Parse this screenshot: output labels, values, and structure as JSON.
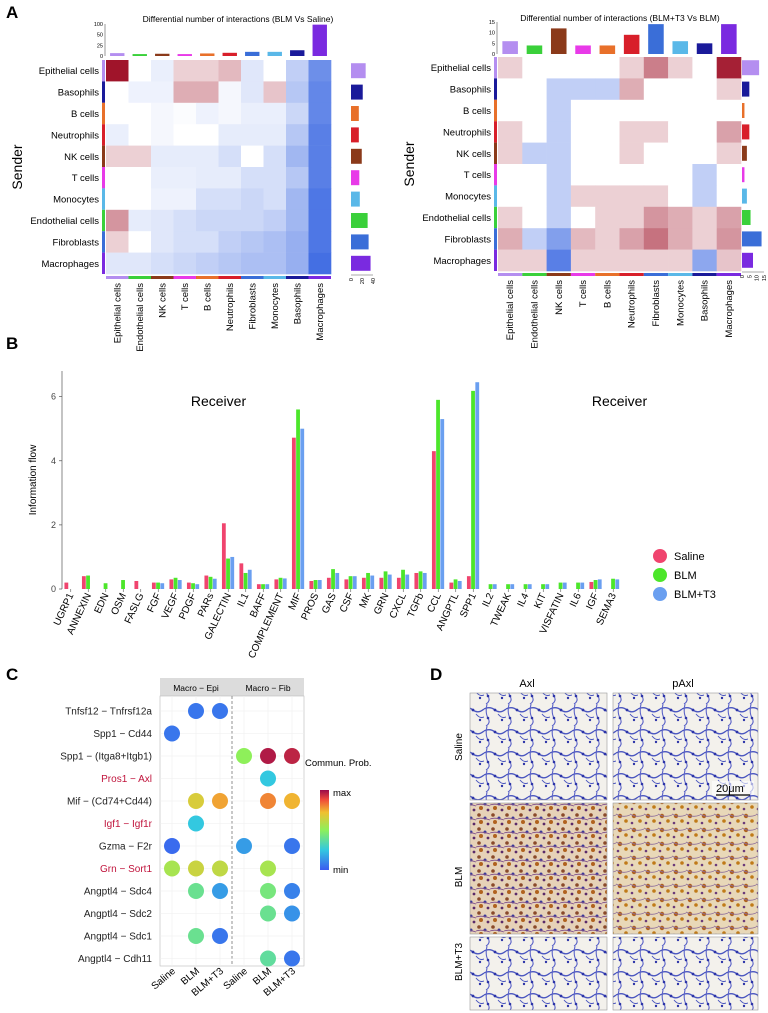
{
  "panels": {
    "a": "A",
    "b": "B",
    "c": "C",
    "d": "D"
  },
  "colors": {
    "cell_types": {
      "Epithelial cells": "#b48ef0",
      "Basophils": "#1a1a9a",
      "B cells": "#e8702a",
      "Neutrophils": "#d81f2a",
      "NK cells": "#8b3a1a",
      "T cells": "#e83ae8",
      "Monocytes": "#5ab8e8",
      "Endothelial cells": "#3ad03a",
      "Fibroblasts": "#3a6ed8",
      "Macrophages": "#7a2ae0"
    },
    "saline": "#f0446e",
    "blm": "#4ce62a",
    "blm_t3": "#6a9ff0",
    "heat_pos": "#a0142a",
    "heat_neg": "#2f5fe0"
  },
  "heatmaps": [
    {
      "id": "blm_vs_saline",
      "title": "Differential number of interactions (BLM  Vs  Saline)",
      "ylabel": "Sender",
      "xlabel": "Receiver",
      "rows": [
        "Epithelial cells",
        "Basophils",
        "B cells",
        "Neutrophils",
        "NK cells",
        "T cells",
        "Monocytes",
        "Endothelial cells",
        "Fibroblasts",
        "Macrophages"
      ],
      "cols": [
        "Epithelial cells",
        "Endothelial cells",
        "NK cells",
        "T cells",
        "B cells",
        "Neutrophils",
        "Fibroblasts",
        "Monocytes",
        "Basophils",
        "Macrophages"
      ],
      "top_axis_ticks": [
        "100",
        "50",
        "25",
        "0"
      ],
      "top_axis_max": 100,
      "right_axis_ticks": [
        "0",
        "20",
        "40"
      ],
      "right_axis_max": 45,
      "top_bars": [
        9,
        6,
        7,
        6,
        8,
        10,
        13,
        13,
        18,
        98
      ],
      "right_bars": [
        30,
        24,
        16,
        16,
        22,
        17,
        18,
        34,
        36,
        40
      ],
      "matrix": [
        [
          1,
          0,
          -0.1,
          0.2,
          0.2,
          0.3,
          -0.15,
          0,
          -0.3,
          -0.7
        ],
        [
          0,
          -0.08,
          -0.08,
          0.35,
          0.35,
          -0.05,
          -0.15,
          0.25,
          -0.35,
          -0.75
        ],
        [
          0,
          0,
          -0.05,
          -0.02,
          -0.08,
          -0.05,
          -0.1,
          -0.1,
          -0.25,
          -0.75
        ],
        [
          -0.1,
          0,
          -0.05,
          0,
          0,
          -0.12,
          -0.12,
          -0.12,
          -0.35,
          -0.8
        ],
        [
          0.2,
          0.2,
          -0.12,
          -0.12,
          -0.12,
          -0.2,
          0,
          -0.2,
          -0.45,
          -0.8
        ],
        [
          0,
          0,
          -0.1,
          -0.1,
          -0.12,
          -0.12,
          -0.2,
          -0.2,
          -0.35,
          -0.8
        ],
        [
          0,
          0,
          -0.08,
          -0.08,
          -0.2,
          -0.2,
          -0.25,
          -0.2,
          -0.45,
          -0.85
        ],
        [
          0.45,
          -0.12,
          -0.15,
          -0.2,
          -0.25,
          -0.25,
          -0.25,
          -0.3,
          -0.45,
          -0.85
        ],
        [
          0.2,
          0,
          -0.15,
          -0.2,
          -0.2,
          -0.3,
          -0.35,
          -0.4,
          -0.5,
          -0.85
        ],
        [
          -0.15,
          -0.15,
          -0.2,
          -0.25,
          -0.3,
          -0.35,
          -0.4,
          -0.4,
          -0.5,
          -0.9
        ]
      ]
    },
    {
      "id": "blmt3_vs_blm",
      "title": "Differential number of interactions (BLM+T3  Vs  BLM)",
      "ylabel": "Sender",
      "xlabel": "Receiver",
      "rows": [
        "Epithelial cells",
        "Basophils",
        "B cells",
        "Neutrophils",
        "NK cells",
        "T cells",
        "Monocytes",
        "Endothelial cells",
        "Fibroblasts",
        "Macrophages"
      ],
      "cols": [
        "Epithelial cells",
        "Endothelial cells",
        "NK cells",
        "T cells",
        "B cells",
        "Neutrophils",
        "Fibroblasts",
        "Monocytes",
        "Basophils",
        "Macrophages"
      ],
      "top_axis_ticks": [
        "15",
        "10",
        "5",
        "0"
      ],
      "top_axis_max": 15,
      "right_axis_ticks": [
        "0",
        "5",
        "10",
        "15"
      ],
      "right_axis_max": 18,
      "top_bars": [
        6,
        4,
        12,
        4,
        4,
        9,
        14,
        6,
        5,
        14
      ],
      "right_bars": [
        14,
        6,
        2,
        6,
        4,
        2,
        4,
        7,
        16,
        9
      ],
      "matrix": [
        [
          0.2,
          0,
          0,
          0,
          0,
          0.2,
          0.55,
          0.2,
          0,
          0.95
        ],
        [
          0,
          0,
          -0.3,
          -0.3,
          -0.3,
          0.35,
          0,
          0,
          0,
          0.2
        ],
        [
          0,
          0,
          -0.3,
          0,
          0,
          0,
          0,
          0,
          0,
          0
        ],
        [
          0.2,
          0,
          -0.3,
          0,
          0,
          0.2,
          0.2,
          0,
          0,
          0.4
        ],
        [
          0.2,
          -0.3,
          -0.3,
          0,
          0,
          0.2,
          0,
          0,
          0,
          0.2
        ],
        [
          0,
          0,
          -0.3,
          0,
          0,
          0,
          0,
          0,
          -0.3,
          0
        ],
        [
          0,
          0,
          -0.3,
          0.2,
          0.2,
          0.2,
          0.2,
          0,
          -0.3,
          0
        ],
        [
          0.2,
          0,
          -0.3,
          0,
          0.2,
          0.2,
          0.45,
          0.35,
          0.2,
          0.4
        ],
        [
          0.35,
          -0.3,
          -0.6,
          0.3,
          0.2,
          0.4,
          0.6,
          0.35,
          0.2,
          0.45
        ],
        [
          0.2,
          0.2,
          -0.8,
          0.2,
          0.2,
          0.2,
          0.2,
          0.2,
          -0.55,
          0.25
        ]
      ]
    }
  ],
  "chart_data": {
    "type": "bar",
    "ylabel": "Information flow",
    "ylim": [
      0,
      6.8
    ],
    "yticks": [
      "0",
      "2",
      "4",
      "6"
    ],
    "categories": [
      "UGRP1",
      "ANNEXIN",
      "EDN",
      "OSM",
      "FASLG",
      "FGF",
      "VEGF",
      "PDGF",
      "PARs",
      "GALECTIN",
      "IL1",
      "BAFF",
      "COMPLEMENT",
      "MIF",
      "PROS",
      "GAS",
      "CSF",
      "MK",
      "GRN",
      "CXCL",
      "TGFb",
      "CCL",
      "ANGPTL",
      "SPP1",
      "IL2",
      "TWEAK",
      "IL4",
      "KIT",
      "VISFATIN",
      "IL6",
      "IGF",
      "SEMA3"
    ],
    "series": [
      {
        "name": "Saline",
        "values": [
          0.2,
          0.4,
          0,
          0,
          0.25,
          0.2,
          0.3,
          0.2,
          0.42,
          2.05,
          0.8,
          0.15,
          0.3,
          4.72,
          0.25,
          0.35,
          0.3,
          0.35,
          0.35,
          0.35,
          0.5,
          4.3,
          0.2,
          0.4,
          0,
          0,
          0,
          0,
          0,
          0,
          0.22,
          0
        ]
      },
      {
        "name": "BLM",
        "values": [
          0,
          0.42,
          0.18,
          0.28,
          0,
          0.2,
          0.35,
          0.18,
          0.38,
          0.95,
          0.5,
          0.15,
          0.35,
          5.6,
          0.28,
          0.62,
          0.4,
          0.5,
          0.55,
          0.6,
          0.55,
          5.9,
          0.3,
          6.18,
          0.15,
          0.15,
          0.15,
          0.15,
          0.2,
          0.2,
          0.28,
          0.32
        ]
      },
      {
        "name": "BLM+T3",
        "values": [
          0,
          0,
          0,
          0,
          0,
          0.18,
          0.28,
          0.15,
          0.32,
          1.0,
          0.6,
          0.15,
          0.33,
          5.0,
          0.28,
          0.5,
          0.4,
          0.42,
          0.45,
          0.45,
          0.5,
          5.3,
          0.25,
          6.45,
          0.15,
          0.15,
          0.15,
          0.15,
          0.2,
          0.2,
          0.3,
          0.3
        ]
      }
    ]
  },
  "dotplot": {
    "group_labels": [
      "Macro − Epi",
      "Macro − Fib"
    ],
    "x_labels": [
      "Saline",
      "BLM",
      "BLM+T3",
      "Saline",
      "BLM",
      "BLM+T3"
    ],
    "legend_title": "Commun. Prob.",
    "legend_max": "max",
    "legend_min": "min",
    "rows": [
      {
        "label": "Tnfsf12  − Tnfrsf12a",
        "highlight": false
      },
      {
        "label": "Spp1  − Cd44",
        "highlight": false
      },
      {
        "label": "Spp1  − (Itga8+Itgb1)",
        "highlight": false
      },
      {
        "label": "Pros1  − Axl",
        "highlight": true
      },
      {
        "label": "Mif  − (Cd74+Cd44)",
        "highlight": false
      },
      {
        "label": "Igf1  − Igf1r",
        "highlight": true
      },
      {
        "label": "Gzma  − F2r",
        "highlight": false
      },
      {
        "label": "Grn  − Sort1",
        "highlight": true
      },
      {
        "label": "Angptl4  − Sdc4",
        "highlight": false
      },
      {
        "label": "Angptl4  − Sdc2",
        "highlight": false
      },
      {
        "label": "Angptl4  − Sdc1",
        "highlight": false
      },
      {
        "label": "Angptl4  − Cdh11",
        "highlight": false
      }
    ],
    "dots": [
      [
        0,
        1,
        0.05
      ],
      [
        0,
        2,
        0.05
      ],
      [
        1,
        0,
        0.05
      ],
      [
        2,
        3,
        0.4
      ],
      [
        2,
        4,
        0.95
      ],
      [
        2,
        5,
        0.92
      ],
      [
        3,
        4,
        0.2
      ],
      [
        4,
        1,
        0.55
      ],
      [
        4,
        2,
        0.65
      ],
      [
        4,
        4,
        0.7
      ],
      [
        4,
        5,
        0.62
      ],
      [
        5,
        1,
        0.2
      ],
      [
        6,
        0,
        0.03
      ],
      [
        6,
        3,
        0.12
      ],
      [
        6,
        5,
        0.05
      ],
      [
        7,
        0,
        0.45
      ],
      [
        7,
        1,
        0.52
      ],
      [
        7,
        2,
        0.5
      ],
      [
        7,
        4,
        0.45
      ],
      [
        8,
        1,
        0.32
      ],
      [
        8,
        2,
        0.12
      ],
      [
        8,
        4,
        0.35
      ],
      [
        8,
        5,
        0.07
      ],
      [
        9,
        4,
        0.32
      ],
      [
        9,
        5,
        0.1
      ],
      [
        10,
        1,
        0.32
      ],
      [
        10,
        2,
        0.05
      ],
      [
        11,
        4,
        0.3
      ],
      [
        11,
        5,
        0.05
      ]
    ]
  },
  "micrographs": {
    "col_labels": [
      "Axl",
      "pAxl"
    ],
    "row_labels": [
      "Saline",
      "BLM",
      "BLM+T3"
    ],
    "scale_bar": "20μm"
  }
}
